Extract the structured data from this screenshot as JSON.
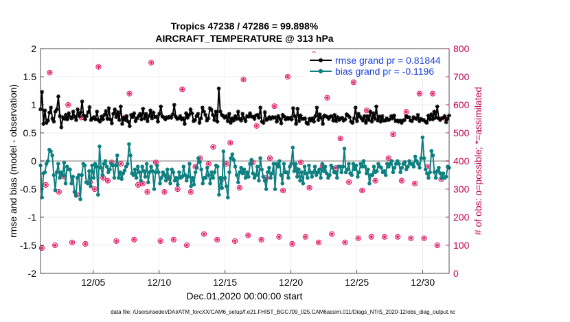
{
  "chart_data": {
    "type": "line",
    "title_line1": "Tropics 47238 / 47286 = 99.898%",
    "title_line2": "AIRCRAFT_TEMPERATURE @ 313 hPa",
    "xlabel": "Dec.01,2020 00:00:00 start",
    "ylabel_left": "rmse and bias (model - observation)",
    "ylabel_right": "# of obs: o=possible; *=assimilated",
    "footer": "data file: /Users/raeder/DAI/ATM_forcXX/CAM6_setup/f.e21.FHIST_BGC.f09_025.CAM6assim.011/Diags_NTrS_2020-12/obs_diag_output.nc",
    "xlim": [
      1,
      32
    ],
    "ylim_left": [
      -2,
      2
    ],
    "ylim_right": [
      0,
      800
    ],
    "x_ticks": [
      5,
      10,
      15,
      20,
      25,
      30
    ],
    "x_tick_labels": [
      "12/05",
      "12/10",
      "12/15",
      "12/20",
      "12/25",
      "12/30"
    ],
    "y_left_ticks": [
      "-2",
      "-1.5",
      "-1",
      "-0.5",
      "0",
      "0.5",
      "1",
      "1.5",
      "2"
    ],
    "y_right_ticks": [
      "0",
      "100",
      "200",
      "300",
      "400",
      "500",
      "600",
      "700",
      "800"
    ],
    "series": [
      {
        "name": "rmse grand pr = 0.81844",
        "color": "#000000",
        "axis": "left",
        "values": [
          0.92,
          1.23,
          0.66,
          0.9,
          0.68,
          0.72,
          0.86,
          0.95,
          0.75,
          0.7,
          0.88,
          0.92,
          1.15,
          0.8,
          0.6,
          0.78,
          0.75,
          0.82,
          0.74,
          0.85,
          0.78,
          0.76,
          0.88,
          0.79,
          0.73,
          0.92,
          0.8,
          0.86,
          1.06,
          0.81,
          0.74,
          0.8,
          0.87,
          0.96,
          0.73,
          0.76,
          0.78,
          0.74,
          0.88,
          0.73,
          0.7,
          0.79,
          0.74,
          0.82,
          0.89,
          0.75,
          0.94,
          0.74,
          0.67,
          0.84,
          0.92,
          0.78,
          0.87,
          0.73,
          0.97,
          0.66,
          0.77,
          0.73,
          0.8,
          0.7,
          0.62,
          0.82,
          0.78,
          0.85,
          0.71,
          0.76,
          0.8,
          0.84,
          0.74,
          0.93,
          0.76,
          0.84,
          0.71,
          0.8,
          0.9,
          0.76,
          0.86,
          0.78,
          0.79,
          0.7,
          0.84,
          0.97,
          0.79,
          0.78,
          0.74,
          0.78,
          0.77,
          0.79,
          0.77,
          0.83,
          1.0,
          0.79,
          0.75,
          0.76,
          0.8,
          0.74,
          0.76,
          0.66,
          0.85,
          0.77,
          0.82,
          0.92,
          0.85,
          0.71,
          0.73,
          0.8,
          0.84,
          0.68,
          0.76,
          0.95,
          0.88,
          0.82,
          0.72,
          0.76,
          0.94,
          0.91,
          0.82,
          0.73,
          0.88,
          0.7,
          1.29,
          0.88,
          0.82,
          0.8,
          0.77,
          0.8,
          0.71,
          0.84,
          0.68,
          0.76,
          0.72,
          0.8,
          0.75,
          0.88,
          0.75,
          0.72,
          0.84,
          0.76,
          0.71,
          0.8,
          0.79,
          0.85,
          0.79,
          0.79,
          0.75,
          0.81,
          0.82,
          0.77,
          0.95,
          0.7,
          0.68,
          0.87,
          0.73,
          0.75,
          0.78,
          0.75,
          0.78,
          0.77,
          0.78,
          0.7,
          0.8,
          0.75,
          0.67,
          0.82,
          0.79,
          0.74,
          0.77,
          0.75,
          0.77,
          0.74,
          0.94,
          0.8,
          0.66,
          0.93,
          0.71,
          0.81,
          0.75,
          0.75,
          0.76,
          0.68,
          0.66,
          0.75,
          0.72,
          0.76,
          0.7,
          0.8,
          0.95,
          0.73,
          0.83,
          0.77,
          0.66,
          0.81,
          0.8,
          0.78,
          0.75,
          0.79,
          0.8,
          0.72,
          0.82,
          0.71,
          0.78,
          0.73,
          0.76,
          0.77,
          0.72,
          0.74,
          0.83,
          0.81,
          0.78,
          0.7,
          0.68,
          0.76,
          0.95,
          0.71,
          0.84,
          0.79,
          0.76,
          0.72,
          0.8,
          0.68,
          0.8,
          0.73,
          0.88,
          0.7,
          0.85,
          0.75,
          0.97,
          0.72,
          0.79,
          0.7,
          0.8,
          0.72,
          0.72,
          0.76,
          0.73,
          0.74,
          0.8,
          0.76,
          0.81,
          0.71,
          0.72,
          0.7,
          0.72,
          0.68,
          0.72,
          0.73,
          0.8,
          0.78,
          0.78,
          0.72,
          0.71,
          0.78,
          0.76,
          0.75,
          0.82,
          0.71,
          0.75,
          0.73,
          0.73,
          0.7,
          0.68,
          0.81,
          0.74,
          0.83,
          0.74,
          0.88,
          0.77,
          0.97,
          0.76,
          0.73,
          0.76,
          0.77,
          0.8,
          0.69,
          0.75,
          0.81
        ]
      },
      {
        "name": "bias grand pr = -0.1196",
        "color": "#0e8080",
        "axis": "left",
        "values": [
          -0.08,
          -0.65,
          -0.22,
          -0.2,
          -0.05,
          0.0,
          0.2,
          0.17,
          0.1,
          -0.25,
          -0.52,
          -0.2,
          -0.05,
          -0.3,
          -0.2,
          -0.25,
          -0.03,
          -0.4,
          -0.1,
          -0.15,
          -0.15,
          -0.4,
          -0.28,
          -0.55,
          -0.62,
          -0.3,
          -0.25,
          -0.68,
          -0.25,
          -0.05,
          -0.08,
          -0.38,
          -0.4,
          -0.18,
          -0.45,
          -0.08,
          -0.3,
          -0.05,
          -0.1,
          -0.6,
          0.26,
          -0.12,
          -0.25,
          -0.05,
          0.0,
          -0.1,
          -0.2,
          -0.15,
          -0.05,
          -0.08,
          -0.3,
          -0.08,
          0.1,
          -0.3,
          -0.2,
          -0.32,
          -0.22,
          -0.17,
          -0.1,
          -0.05,
          0.3,
          0.1,
          -0.22,
          -0.25,
          -0.15,
          -0.3,
          -0.1,
          -0.2,
          -0.35,
          -0.1,
          -0.18,
          -0.28,
          -0.05,
          -0.38,
          -0.2,
          -0.1,
          -0.18,
          -0.5,
          -0.2,
          -0.08,
          -0.2,
          -0.4,
          -0.3,
          -0.2,
          -0.25,
          -0.35,
          -0.15,
          -0.3,
          -0.4,
          -0.15,
          -0.2,
          -0.35,
          -0.3,
          -0.42,
          -0.2,
          -0.3,
          -0.28,
          -0.1,
          -0.25,
          -0.35,
          -0.28,
          -0.05,
          -0.45,
          -0.3,
          -0.42,
          -0.2,
          -0.12,
          0.05,
          -0.02,
          -0.15,
          -0.4,
          -0.3,
          -0.3,
          -0.12,
          -0.25,
          -0.4,
          -0.2,
          -0.3,
          -0.2,
          -0.08,
          -0.1,
          -0.6,
          -0.3,
          -0.48,
          0.17,
          -0.3,
          -0.45,
          -0.65,
          -0.2,
          0.05,
          0.12,
          0.02,
          -0.1,
          -0.25,
          -0.38,
          -0.2,
          -0.12,
          -0.22,
          -0.15,
          -0.3,
          -0.2,
          -0.28,
          -0.05,
          0.02,
          -0.22,
          -0.3,
          -0.25,
          -0.1,
          -0.35,
          0.05,
          -0.15,
          -0.28,
          -0.35,
          -0.5,
          -0.2,
          -0.12,
          -0.3,
          -0.22,
          -0.05,
          -0.5,
          -0.05,
          -0.1,
          0.0,
          -0.25,
          -0.4,
          -0.05,
          -0.2,
          -0.2,
          -0.3,
          -0.1,
          -0.05,
          0.24,
          -0.18,
          -0.05,
          -0.28,
          -0.15,
          -0.35,
          -0.2,
          -0.4,
          -0.1,
          -0.22,
          -0.3,
          -0.08,
          -0.2,
          -0.28,
          -0.2,
          -0.1,
          -0.25,
          -0.2,
          -0.15,
          -0.3,
          -0.05,
          -0.18,
          -0.1,
          -0.22,
          -0.3,
          -0.25,
          -0.08,
          -0.12,
          -0.2,
          -0.2,
          -0.3,
          -0.1,
          -0.1,
          -0.2,
          -0.1,
          0.22,
          -0.2,
          -0.15,
          -0.05,
          -0.22,
          -0.25,
          -0.05,
          -0.15,
          -0.08,
          -0.28,
          -0.2,
          -0.05,
          -0.1,
          0.0,
          -0.1,
          -0.22,
          -0.15,
          -0.4,
          -0.25,
          -0.25,
          -0.1,
          -0.2,
          -0.18,
          -0.05,
          -0.1,
          -0.12,
          -0.2,
          -0.18,
          -0.25,
          -0.05,
          -0.1,
          -0.05,
          0.0,
          -0.2,
          -0.12,
          -0.05,
          0.0,
          -0.05,
          -0.2,
          -0.12,
          -0.05,
          -0.02,
          -0.15,
          -0.1,
          0.0,
          -0.05,
          -0.05,
          -0.1,
          0.08,
          0.0,
          -0.05,
          -0.12,
          0.05,
          0.42,
          0.05,
          -0.15,
          -0.22,
          -0.3,
          -0.2,
          0.18,
          0.1,
          -0.2,
          -0.3,
          -0.18,
          -0.12,
          -0.22,
          -0.3,
          -0.22,
          -0.3,
          -0.28,
          -0.1,
          -0.12
        ]
      },
      {
        "name": "obs possible",
        "color": "#e0115f",
        "axis": "right",
        "marker": "circle",
        "x": [
          1.1,
          1.4,
          1.7,
          2.1,
          2.4,
          2.75,
          3.1,
          3.4,
          3.75,
          4.1,
          4.4,
          4.75,
          5.1,
          5.4,
          5.75,
          6.1,
          6.4,
          6.75,
          7.1,
          7.4,
          7.75,
          8.1,
          8.4,
          8.75,
          9.1,
          9.4,
          9.75,
          10.1,
          10.4,
          10.75,
          11.1,
          11.4,
          11.75,
          12.1,
          12.4,
          12.75,
          13.1,
          13.4,
          13.75,
          14.1,
          14.4,
          14.75,
          15.1,
          15.4,
          15.75,
          16.1,
          16.4,
          16.75,
          17.1,
          17.4,
          17.75,
          18.1,
          18.4,
          18.75,
          19.1,
          19.4,
          19.75,
          20.1,
          20.4,
          20.75,
          21.1,
          21.4,
          21.75,
          22.1,
          22.4,
          22.75,
          23.1,
          23.4,
          23.75,
          24.1,
          24.4,
          24.75,
          25.1,
          25.4,
          25.75,
          26.1,
          26.4,
          26.75,
          27.1,
          27.4,
          27.75,
          28.1,
          28.4,
          28.75,
          29.1,
          29.4,
          29.75,
          30.1,
          30.4,
          30.75,
          31.1,
          31.4,
          31.75
        ],
        "values": [
          90,
          315,
          715,
          100,
          290,
          345,
          600,
          110,
          280,
          555,
          105,
          325,
          300,
          735,
          340,
          330,
          395,
          115,
          390,
          555,
          640,
          120,
          315,
          320,
          290,
          750,
          395,
          115,
          290,
          340,
          120,
          300,
          655,
          100,
          290,
          380,
          410,
          140,
          390,
          450,
          120,
          335,
          390,
          465,
          115,
          305,
          690,
          135,
          395,
          525,
          120,
          340,
          410,
          595,
          130,
          295,
          700,
          105,
          370,
          395,
          130,
          305,
          780,
          110,
          380,
          625,
          140,
          375,
          480,
          110,
          325,
          680,
          125,
          295,
          580,
          130,
          330,
          720,
          130,
          410,
          495,
          130,
          330,
          575,
          125,
          320,
          640,
          125,
          380,
          640,
          100,
          335,
          550
        ]
      },
      {
        "name": "obs assimilated",
        "color": "#e0115f",
        "axis": "right",
        "marker": "asterisk",
        "x": [
          1.1,
          1.4,
          1.7,
          2.1,
          2.4,
          2.75,
          3.1,
          3.4,
          3.75,
          4.1,
          4.4,
          4.75,
          5.1,
          5.4,
          5.75,
          6.1,
          6.4,
          6.75,
          7.1,
          7.4,
          7.75,
          8.1,
          8.4,
          8.75,
          9.1,
          9.4,
          9.75,
          10.1,
          10.4,
          10.75,
          11.1,
          11.4,
          11.75,
          12.1,
          12.4,
          12.75,
          13.1,
          13.4,
          13.75,
          14.1,
          14.4,
          14.75,
          15.1,
          15.4,
          15.75,
          16.1,
          16.4,
          16.75,
          17.1,
          17.4,
          17.75,
          18.1,
          18.4,
          18.75,
          19.1,
          19.4,
          19.75,
          20.1,
          20.4,
          20.75,
          21.1,
          21.4,
          21.75,
          22.1,
          22.4,
          22.75,
          23.1,
          23.4,
          23.75,
          24.1,
          24.4,
          24.75,
          25.1,
          25.4,
          25.75,
          26.1,
          26.4,
          26.75,
          27.1,
          27.4,
          27.75,
          28.1,
          28.4,
          28.75,
          29.1,
          29.4,
          29.75,
          30.1,
          30.4,
          30.75,
          31.1,
          31.4,
          31.75
        ],
        "values": [
          90,
          315,
          715,
          100,
          290,
          345,
          600,
          110,
          280,
          555,
          105,
          325,
          300,
          735,
          340,
          330,
          395,
          115,
          390,
          555,
          640,
          120,
          315,
          320,
          290,
          750,
          395,
          115,
          290,
          340,
          120,
          300,
          655,
          100,
          290,
          380,
          410,
          140,
          390,
          450,
          120,
          335,
          390,
          465,
          115,
          305,
          690,
          135,
          395,
          525,
          120,
          340,
          410,
          595,
          130,
          295,
          700,
          105,
          370,
          395,
          130,
          305,
          780,
          110,
          380,
          625,
          140,
          375,
          480,
          110,
          325,
          680,
          125,
          295,
          580,
          130,
          330,
          720,
          130,
          410,
          495,
          130,
          330,
          575,
          125,
          320,
          640,
          125,
          380,
          640,
          100,
          335,
          550
        ]
      }
    ],
    "grid": true,
    "legend_position": "top-right"
  }
}
